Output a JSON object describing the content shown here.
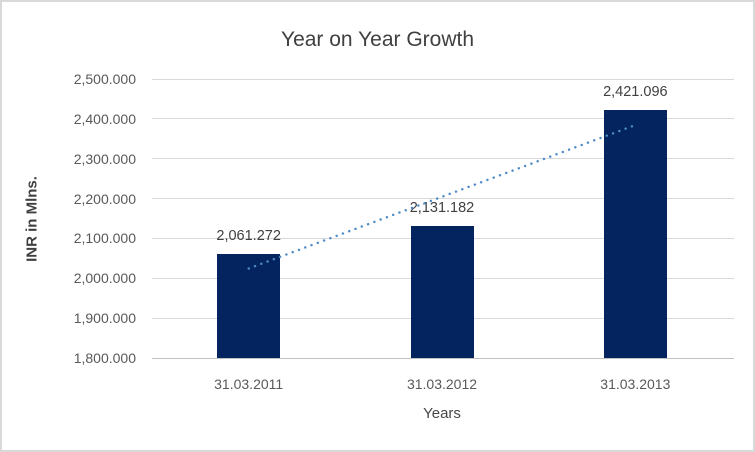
{
  "chart_data": {
    "type": "bar",
    "title": "Year on Year Growth",
    "xlabel": "Years",
    "ylabel": "INR in Mlns.",
    "categories": [
      "31.03.2011",
      "31.03.2012",
      "31.03.2013"
    ],
    "values": [
      2061.272,
      2131.182,
      2421.096
    ],
    "value_labels": [
      "2,061.272",
      "2,131.182",
      "2,421.096"
    ],
    "ylim": [
      1800,
      2500
    ],
    "ytick_step": 100,
    "ytick_labels": [
      "1,800.000",
      "1,900.000",
      "2,000.000",
      "2,100.000",
      "2,200.000",
      "2,300.000",
      "2,400.000",
      "2,500.000"
    ],
    "grid": true,
    "legend": "none",
    "trendline": {
      "type": "linear",
      "style": "dotted",
      "start_value": 2024.605,
      "end_value": 2384.429
    },
    "colors": {
      "bar": "#03245f",
      "trendline": "#4e8bc8",
      "gridline": "#d9d9d9",
      "axis_line": "#c0c0c0",
      "title_text": "#404040",
      "tick_text": "#595959",
      "frame_border": "#d9d9d9",
      "background": "#ffffff"
    }
  }
}
